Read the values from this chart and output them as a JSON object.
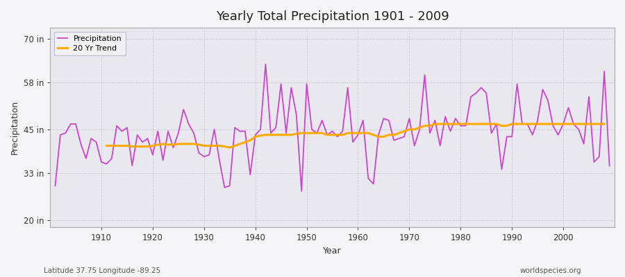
{
  "title": "Yearly Total Precipitation 1901 - 2009",
  "xlabel": "Year",
  "ylabel": "Precipitation",
  "subtitle_left": "Latitude 37.75 Longitude -89.25",
  "subtitle_right": "worldspecies.org",
  "yticks": [
    20,
    33,
    45,
    58,
    70
  ],
  "ytick_labels": [
    "20 in",
    "33 in",
    "45 in",
    "58 in",
    "70 in"
  ],
  "ylim": [
    18,
    73
  ],
  "xlim": [
    1900,
    2010
  ],
  "xticks": [
    1910,
    1920,
    1930,
    1940,
    1950,
    1960,
    1970,
    1980,
    1990,
    2000
  ],
  "fig_bg_color": "#f5f5f8",
  "plot_bg_color": "#e8e8ee",
  "grid_color": "#c8c8d8",
  "precip_color": "#cc44cc",
  "trend_color": "#ffaa00",
  "legend_bg": "#f0f0f5",
  "legend_edge": "#bbbbcc",
  "years": [
    1901,
    1902,
    1903,
    1904,
    1905,
    1906,
    1907,
    1908,
    1909,
    1910,
    1911,
    1912,
    1913,
    1914,
    1915,
    1916,
    1917,
    1918,
    1919,
    1920,
    1921,
    1922,
    1923,
    1924,
    1925,
    1926,
    1927,
    1928,
    1929,
    1930,
    1931,
    1932,
    1933,
    1934,
    1935,
    1936,
    1937,
    1938,
    1939,
    1940,
    1941,
    1942,
    1943,
    1944,
    1945,
    1946,
    1947,
    1948,
    1949,
    1950,
    1951,
    1952,
    1953,
    1954,
    1955,
    1956,
    1957,
    1958,
    1959,
    1960,
    1961,
    1962,
    1963,
    1964,
    1965,
    1966,
    1967,
    1968,
    1969,
    1970,
    1971,
    1972,
    1973,
    1974,
    1975,
    1976,
    1977,
    1978,
    1979,
    1980,
    1981,
    1982,
    1983,
    1984,
    1985,
    1986,
    1987,
    1988,
    1989,
    1990,
    1991,
    1992,
    1993,
    1994,
    1995,
    1996,
    1997,
    1998,
    1999,
    2000,
    2001,
    2002,
    2003,
    2004,
    2005,
    2006,
    2007,
    2008,
    2009
  ],
  "precip": [
    29.5,
    43.5,
    44.0,
    46.5,
    46.5,
    41.0,
    37.0,
    42.5,
    41.5,
    36.0,
    35.5,
    37.0,
    46.0,
    44.5,
    45.5,
    35.0,
    43.5,
    41.5,
    42.5,
    38.0,
    44.5,
    36.5,
    44.5,
    40.0,
    44.0,
    50.5,
    46.5,
    44.0,
    38.5,
    37.5,
    38.0,
    45.0,
    36.5,
    29.0,
    29.5,
    45.5,
    44.5,
    44.5,
    32.5,
    43.5,
    45.0,
    63.0,
    44.0,
    45.5,
    57.5,
    44.0,
    56.5,
    49.0,
    28.0,
    57.5,
    45.0,
    44.0,
    47.5,
    43.5,
    44.5,
    43.0,
    44.5,
    56.5,
    41.5,
    43.5,
    47.5,
    31.5,
    30.0,
    43.5,
    48.0,
    47.5,
    42.0,
    42.5,
    43.0,
    48.0,
    40.5,
    45.0,
    60.0,
    44.0,
    47.5,
    40.5,
    48.5,
    44.5,
    48.0,
    46.0,
    46.0,
    54.0,
    55.0,
    56.5,
    55.0,
    44.0,
    46.5,
    34.0,
    43.0,
    43.0,
    57.5,
    46.5,
    46.5,
    43.5,
    47.5,
    56.0,
    53.0,
    46.0,
    43.5,
    46.5,
    51.0,
    46.5,
    45.0,
    41.0,
    54.0,
    36.0,
    37.5,
    61.0,
    35.0
  ],
  "trend": [
    null,
    null,
    null,
    null,
    null,
    null,
    null,
    null,
    null,
    null,
    40.5,
    40.5,
    40.5,
    40.5,
    40.5,
    40.3,
    40.3,
    40.3,
    40.3,
    40.5,
    40.8,
    41.0,
    40.8,
    40.8,
    41.0,
    41.0,
    41.0,
    41.0,
    40.8,
    40.5,
    40.5,
    40.5,
    40.5,
    40.3,
    40.0,
    40.5,
    41.0,
    41.5,
    42.0,
    43.0,
    43.3,
    43.5,
    43.5,
    43.5,
    43.5,
    43.5,
    43.5,
    43.8,
    44.0,
    44.0,
    44.0,
    44.0,
    44.0,
    43.5,
    43.5,
    43.5,
    43.5,
    44.0,
    44.0,
    44.0,
    44.0,
    44.0,
    43.5,
    43.0,
    43.0,
    43.5,
    43.5,
    44.0,
    44.5,
    45.0,
    45.0,
    45.5,
    46.0,
    46.0,
    46.5,
    46.5,
    46.5,
    46.5,
    46.5,
    46.5,
    46.5,
    46.5,
    46.5,
    46.5,
    46.5,
    46.5,
    46.5,
    46.0,
    46.0,
    46.5,
    46.5,
    46.5,
    46.5,
    46.5,
    46.5,
    46.5,
    46.5,
    46.5,
    46.5,
    46.5,
    46.5,
    46.5,
    46.5,
    46.5,
    46.5,
    46.5,
    46.5,
    46.5,
    null
  ]
}
